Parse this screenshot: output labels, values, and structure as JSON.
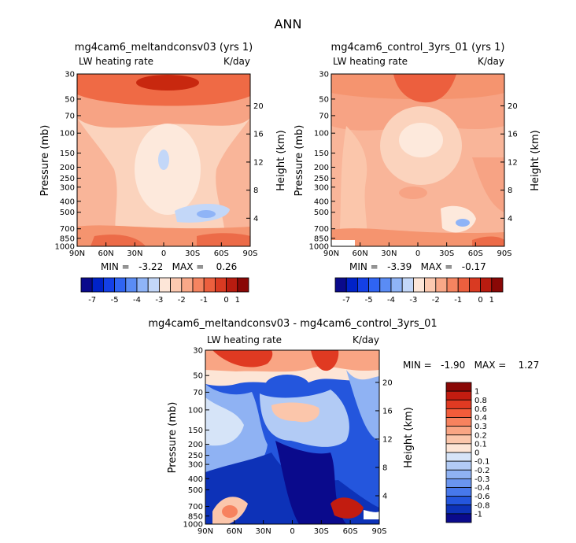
{
  "title": "ANN",
  "chart_data": [
    {
      "type": "heatmap",
      "title": "mg4cam6_meltandconsv03 (yrs 1)",
      "left_label": "LW heating rate",
      "right_label": "K/day",
      "xlabel": "",
      "ylabel": "Pressure (mb)",
      "ylabel_right": "Height (km)",
      "x_ticks": [
        "90N",
        "60N",
        "30N",
        "0",
        "30S",
        "60S",
        "90S"
      ],
      "y_ticks": [
        30,
        50,
        70,
        100,
        150,
        200,
        250,
        300,
        400,
        500,
        700,
        850,
        1000
      ],
      "y_right_ticks": [
        20,
        16,
        12,
        8,
        4
      ],
      "stats": "MIN =   -3.22   MAX =    0.26"
    },
    {
      "type": "heatmap",
      "title": "mg4cam6_control_3yrs_01 (yrs 1)",
      "left_label": "LW heating rate",
      "right_label": "K/day",
      "xlabel": "",
      "ylabel": "Pressure (mb)",
      "ylabel_right": "Height (km)",
      "x_ticks": [
        "90N",
        "60N",
        "30N",
        "0",
        "30S",
        "60S",
        "90S"
      ],
      "y_ticks": [
        30,
        50,
        70,
        100,
        150,
        200,
        250,
        300,
        400,
        500,
        700,
        850,
        1000
      ],
      "y_right_ticks": [
        20,
        16,
        12,
        8,
        4
      ],
      "stats": "MIN =   -3.39   MAX =   -0.17"
    },
    {
      "type": "heatmap",
      "title": "mg4cam6_meltandconsv03 - mg4cam6_control_3yrs_01",
      "left_label": "LW heating rate",
      "right_label": "K/day",
      "xlabel": "",
      "ylabel": "Pressure (mb)",
      "ylabel_right": "Height (km)",
      "x_ticks": [
        "90N",
        "60N",
        "30N",
        "0",
        "30S",
        "60S",
        "90S"
      ],
      "y_ticks": [
        30,
        50,
        70,
        100,
        150,
        200,
        250,
        300,
        400,
        500,
        700,
        850,
        1000
      ],
      "y_right_ticks": [
        20,
        16,
        12,
        8,
        4
      ],
      "stats": "MIN =   -1.90   MAX =    1.27"
    }
  ],
  "top_colorbar": {
    "labels": [
      "-7",
      "-5",
      "-4",
      "-3",
      "-2",
      "-1",
      "0",
      "1"
    ],
    "colors": [
      "#0a0a8c",
      "#0022c8",
      "#1440e6",
      "#2f64f2",
      "#5a8cf5",
      "#8fb4f7",
      "#c3d7f8",
      "#fde6d8",
      "#fcc9b0",
      "#f9a888",
      "#f58460",
      "#ec5f3e",
      "#d93a22",
      "#b81c10",
      "#8a0806"
    ]
  },
  "diff_colorbar": {
    "labels": [
      "1",
      "0.8",
      "0.6",
      "0.4",
      "0.3",
      "0.2",
      "0.1",
      "0",
      "-0.1",
      "-0.2",
      "-0.3",
      "-0.4",
      "-0.6",
      "-0.8",
      "-1"
    ],
    "colors": [
      "#8a0806",
      "#c21c10",
      "#e03a22",
      "#f25c3a",
      "#f7825e",
      "#f9a584",
      "#fbc6ab",
      "#fde5d6",
      "#d6e4f8",
      "#b2cbf5",
      "#8fb2f3",
      "#6a95ef",
      "#4778eb",
      "#2456dd",
      "#0d32b8",
      "#0a0a8c"
    ]
  }
}
